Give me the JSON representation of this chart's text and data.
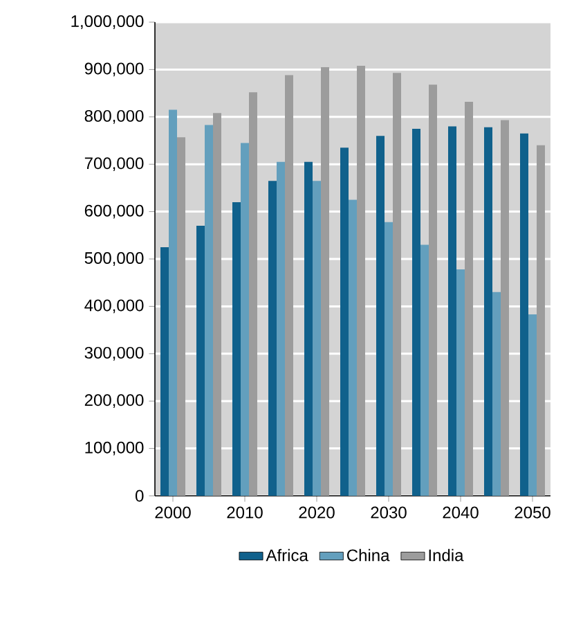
{
  "chart_data": {
    "type": "bar",
    "categories": [
      "2000",
      null,
      "2010",
      null,
      "2020",
      null,
      "2030",
      null,
      "2040",
      null,
      "2050"
    ],
    "series": [
      {
        "name": "Africa",
        "color": "#10618c",
        "values": [
          525000,
          570000,
          620000,
          665000,
          705000,
          735000,
          760000,
          775000,
          780000,
          778000,
          765000
        ]
      },
      {
        "name": "China",
        "color": "#639fbd",
        "values": [
          815000,
          783000,
          745000,
          705000,
          665000,
          625000,
          578000,
          530000,
          478000,
          430000,
          383000
        ]
      },
      {
        "name": "India",
        "color": "#9c9c9c",
        "values": [
          757000,
          808000,
          852000,
          888000,
          905000,
          908000,
          893000,
          868000,
          832000,
          793000,
          740000
        ]
      }
    ],
    "ylim": [
      0,
      1000000
    ],
    "yticks": [
      0,
      {
        "value": 100000,
        "label": "100,000"
      },
      {
        "value": 200000,
        "label": "200,000"
      },
      {
        "value": 300000,
        "label": "300,000"
      },
      {
        "value": 400000,
        "label": "400,000"
      },
      {
        "value": 500000,
        "label": "500,000"
      },
      {
        "value": 600000,
        "label": "600,000"
      },
      {
        "value": 700000,
        "label": "700,000"
      },
      {
        "value": 800000,
        "label": "800,000"
      },
      {
        "value": 900000,
        "label": "900,000"
      },
      {
        "value": 1000000,
        "label": "1,000,000"
      }
    ],
    "grid": "y",
    "legend": "bottom"
  }
}
